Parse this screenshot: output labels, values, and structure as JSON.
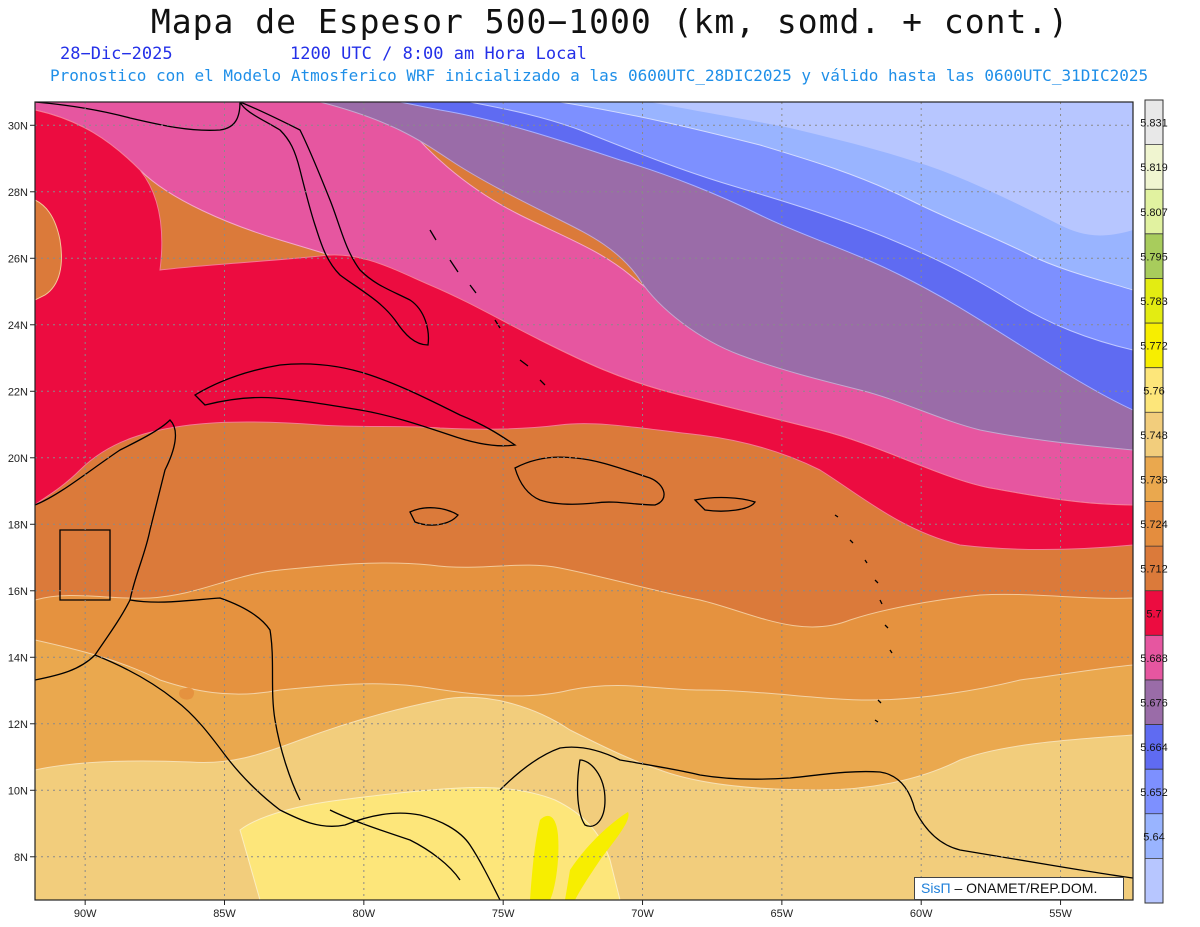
{
  "header": {
    "title": "Mapa de Espesor 500−1000 (km, somd. + cont.)",
    "date": "28−Dic−2025",
    "time": "1200 UTC / 8:00 am Hora Local",
    "subtitle": "Pronostico con el Modelo Atmosferico WRF inicializado a las 0600UTC_28DIC2025 y válido hasta las  0600UTC_31DIC2025"
  },
  "map": {
    "lon_ticks": [
      "90W",
      "85W",
      "80W",
      "75W",
      "70W",
      "65W",
      "60W",
      "55W"
    ],
    "lat_ticks": [
      "30N",
      "28N",
      "26N",
      "24N",
      "22N",
      "20N",
      "18N",
      "16N",
      "14N",
      "12N",
      "10N",
      "8N"
    ],
    "lon_range": [
      -91.8,
      -52.4
    ],
    "lat_range": [
      6.7,
      30.7
    ],
    "gridlines": "dotted"
  },
  "colorbar": {
    "labels": [
      "5.64",
      "5.652",
      "5.664",
      "5.676",
      "5.688",
      "5.7",
      "5.712",
      "5.724",
      "5.736",
      "5.748",
      "5.76",
      "5.772",
      "5.783",
      "5.795",
      "5.807",
      "5.819",
      "5.831"
    ],
    "colors": [
      "#b7c6ff",
      "#99b4ff",
      "#7d90ff",
      "#5f6bf2",
      "#9a6ca8",
      "#e656a0",
      "#ec0c40",
      "#db7a3a",
      "#e48d3e",
      "#eaa84e",
      "#f2cd7c",
      "#fde67a",
      "#f7ee00",
      "#e3ec12",
      "#a8cc5c",
      "#e1f2a0",
      "#f0f5d0",
      "#e8e8e8"
    ]
  },
  "credit": {
    "brand": "SisΠ",
    "text": "– ONAMET/REP.DOM."
  }
}
